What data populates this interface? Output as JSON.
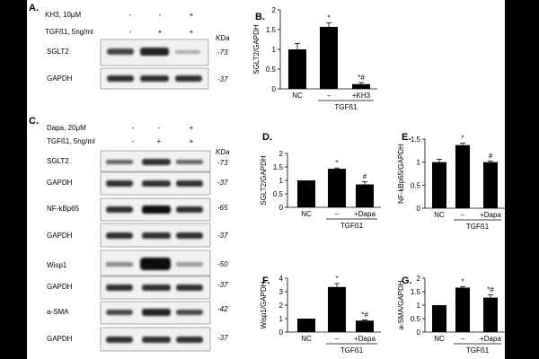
{
  "panel_A": {
    "letter": "A.",
    "kda": "KDa",
    "conditions": [
      {
        "label": "KH3, 10μM",
        "marks": [
          "-",
          "-",
          "+"
        ]
      },
      {
        "label": "TGFß1, 5ng/ml",
        "marks": [
          "-",
          "+",
          "+"
        ]
      }
    ],
    "blots": [
      {
        "name": "SGLT2",
        "mw": "-73"
      },
      {
        "name": "GAPDH",
        "mw": "-37"
      }
    ]
  },
  "panel_C": {
    "letter": "C.",
    "kda": "KDa",
    "conditions": [
      {
        "label": "Dapa, 20μM",
        "marks": [
          "-",
          "-",
          "+"
        ]
      },
      {
        "label": "TGFß1, 5ng/ml",
        "marks": [
          "-",
          "+",
          "+"
        ]
      }
    ],
    "blots": [
      {
        "name": "SGLT2",
        "mw": "-73"
      },
      {
        "name": "GAPDH",
        "mw": "-37"
      },
      {
        "name": "NF-kBp65",
        "mw": "-65"
      },
      {
        "name": "GAPDH",
        "mw": "-37"
      },
      {
        "name": "Wisp1",
        "mw": "-50"
      },
      {
        "name": "GAPDH",
        "mw": "-37"
      },
      {
        "name": "a-SMA",
        "mw": "-42"
      },
      {
        "name": "GAPDH",
        "mw": "-37"
      }
    ]
  },
  "chart_data": [
    {
      "panel": "B.",
      "type": "bar",
      "ylabel": "SGLT2/GAPDH",
      "categories": [
        "NC",
        "–",
        "+KH3"
      ],
      "group_label": "TGFß1",
      "values": [
        1.0,
        1.57,
        0.12
      ],
      "errors": [
        0.15,
        0.1,
        0.04
      ],
      "annotations": [
        "",
        "*",
        "*#"
      ],
      "ylim": [
        0,
        2
      ],
      "yticks": [
        "0",
        "0.5",
        "1",
        "1.5",
        "2"
      ]
    },
    {
      "panel": "D.",
      "type": "bar",
      "ylabel": "SGLT2/GAPDH",
      "categories": [
        "NC",
        "–",
        "+Dapa"
      ],
      "group_label": "TGFß1",
      "values": [
        1.0,
        1.43,
        0.85
      ],
      "errors": [
        0.0,
        0.03,
        0.1
      ],
      "annotations": [
        "",
        "*",
        "#"
      ],
      "ylim": [
        0,
        2
      ],
      "yticks": [
        "0",
        "0.5",
        "1",
        "1.5",
        "2"
      ]
    },
    {
      "panel": "E.",
      "type": "bar",
      "ylabel": "NF-kBp65/GAPDH",
      "categories": [
        "NC",
        "–",
        "+Dapa"
      ],
      "group_label": "TGFß1",
      "values": [
        1.0,
        1.37,
        1.0
      ],
      "errors": [
        0.06,
        0.04,
        0.02
      ],
      "annotations": [
        "",
        "*",
        "#"
      ],
      "ylim": [
        0,
        1.5
      ],
      "yticks": [
        "0",
        "0.5",
        "1",
        "1.5"
      ]
    },
    {
      "panel": "F.",
      "type": "bar",
      "ylabel": "Wisp1/GAPDH",
      "categories": [
        "NC",
        "–",
        "+Dapa"
      ],
      "group_label": "TGFß1",
      "values": [
        1.0,
        3.35,
        0.85
      ],
      "errors": [
        0.0,
        0.25,
        0.05
      ],
      "annotations": [
        "",
        "*",
        "*#"
      ],
      "ylim": [
        0,
        4
      ],
      "yticks": [
        "0",
        "1",
        "2",
        "3",
        "4"
      ]
    },
    {
      "panel": "G.",
      "type": "bar",
      "ylabel": "a-SMA/GAPDH",
      "categories": [
        "NC",
        "–",
        "+Dapa"
      ],
      "group_label": "TGFß1",
      "values": [
        1.0,
        1.65,
        1.28
      ],
      "errors": [
        0.0,
        0.04,
        0.1
      ],
      "annotations": [
        "",
        "*",
        "*#"
      ],
      "ylim": [
        0,
        2
      ],
      "yticks": [
        "0",
        "0.5",
        "1",
        "1.5",
        "2"
      ]
    }
  ]
}
